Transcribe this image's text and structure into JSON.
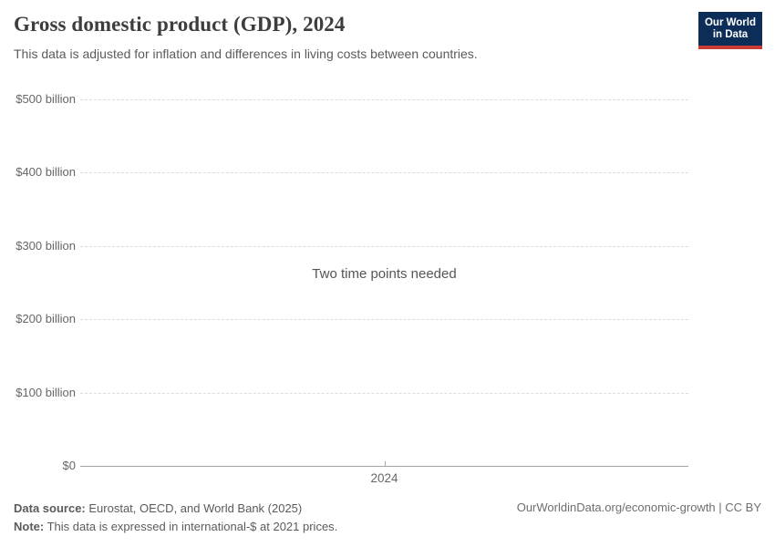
{
  "header": {
    "title": "Gross domestic product (GDP), 2024",
    "subtitle": "This data is adjusted for inflation and differences in living costs between countries.",
    "logo_line1": "Our World",
    "logo_line2": "in Data"
  },
  "chart_data": {
    "type": "line",
    "title": "Gross domestic product (GDP), 2024",
    "series": [],
    "empty_message": "Two time points needed",
    "ylim": [
      0,
      500
    ],
    "y_unit": "billion international-$",
    "grid": true,
    "y_ticks": [
      {
        "label": "$0",
        "value": 0
      },
      {
        "label": "$100 billion",
        "value": 100
      },
      {
        "label": "$200 billion",
        "value": 200
      },
      {
        "label": "$300 billion",
        "value": 300
      },
      {
        "label": "$400 billion",
        "value": 400
      },
      {
        "label": "$500 billion",
        "value": 500
      }
    ],
    "x_ticks": [
      {
        "label": "2024"
      }
    ]
  },
  "footer": {
    "source_label": "Data source:",
    "source_value": "Eurostat, OECD, and World Bank (2025)",
    "note_label": "Note:",
    "note_value": "This data is expressed in international-$ at 2021 prices.",
    "link": "OurWorldinData.org/economic-growth | CC BY"
  },
  "colors": {
    "logo_bg": "#0d2d59",
    "logo_stripe": "#c93c35",
    "gridline": "#dcdcdc",
    "axis": "#a5a5a5",
    "title_text": "#3d3d3d",
    "muted_text": "#5b5b5b",
    "tick_text": "#666666"
  }
}
